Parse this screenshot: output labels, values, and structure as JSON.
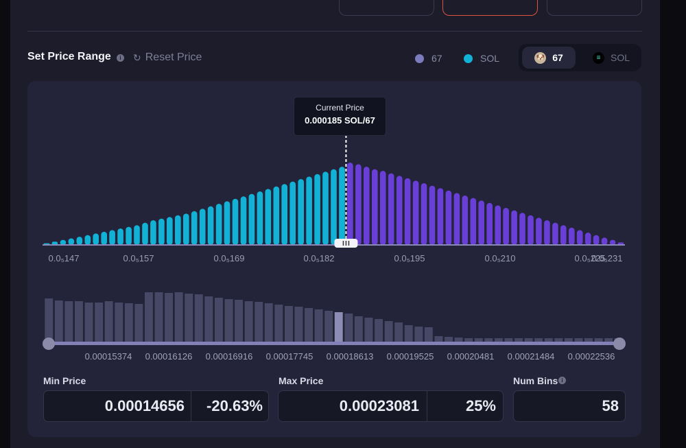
{
  "header": {
    "title": "Set Price Range",
    "reset_label": "Reset Price"
  },
  "legend": [
    {
      "label": "67",
      "color": "#7b7bbd"
    },
    {
      "label": "SOL",
      "color": "#12b2d6"
    }
  ],
  "token_toggle": {
    "active": {
      "label": "67",
      "icon": "dog-token-icon"
    },
    "inactive": {
      "label": "SOL",
      "icon": "solana-token-icon"
    }
  },
  "tooltip": {
    "title": "Current Price",
    "value": "0.000185 SOL/67"
  },
  "chart_data": [
    {
      "type": "bar",
      "title": "Liquidity distribution",
      "series": [
        {
          "name": "SOL",
          "color": "#12b2d6",
          "values": [
            2,
            4,
            6,
            8,
            10,
            12,
            14,
            16,
            18,
            20,
            22,
            24,
            27,
            30,
            32,
            34,
            36,
            38,
            41,
            44,
            47,
            50,
            53,
            56,
            59,
            62,
            65,
            68,
            71,
            74,
            77,
            80,
            83,
            86,
            89,
            92,
            95
          ]
        },
        {
          "name": "67",
          "color": "#6a3fd8",
          "values": [
            100,
            98,
            95,
            92,
            90,
            87,
            84,
            81,
            78,
            75,
            72,
            69,
            66,
            63,
            60,
            57,
            54,
            51,
            48,
            45,
            42,
            39,
            36,
            33,
            30,
            27,
            24,
            21,
            18,
            15,
            12,
            9,
            6,
            3
          ]
        }
      ],
      "tick_labels": [
        "0.0₅147",
        "0.0₅157",
        "0.0₅169",
        "0.0₅182",
        "0.0₅195",
        "0.0₅210",
        "0.0₅225",
        "0.0₅231"
      ],
      "current_price_index": 36
    },
    {
      "type": "bar",
      "title": "Range selector",
      "values": [
        64,
        61,
        60,
        60,
        58,
        58,
        60,
        58,
        57,
        56,
        73,
        73,
        72,
        73,
        71,
        70,
        67,
        65,
        63,
        62,
        60,
        59,
        57,
        55,
        53,
        52,
        50,
        48,
        46,
        44,
        42,
        38,
        36,
        34,
        31,
        29,
        25,
        23,
        22,
        9,
        8,
        7,
        6,
        6,
        6,
        6,
        6,
        6,
        6,
        6,
        6,
        6,
        6,
        6,
        6,
        6,
        6,
        6
      ],
      "highlight_index": 29,
      "axis_labels": [
        "0.00015374",
        "0.00016126",
        "0.00016916",
        "0.00017745",
        "0.00018613",
        "0.00019525",
        "0.00020481",
        "0.00021484",
        "0.00022536"
      ]
    }
  ],
  "fields": {
    "min_price": {
      "label": "Min Price",
      "value": "0.00014656",
      "pct": "-20.63%"
    },
    "max_price": {
      "label": "Max Price",
      "value": "0.00023081",
      "pct": "25%"
    },
    "num_bins": {
      "label": "Num Bins",
      "value": "58"
    }
  }
}
